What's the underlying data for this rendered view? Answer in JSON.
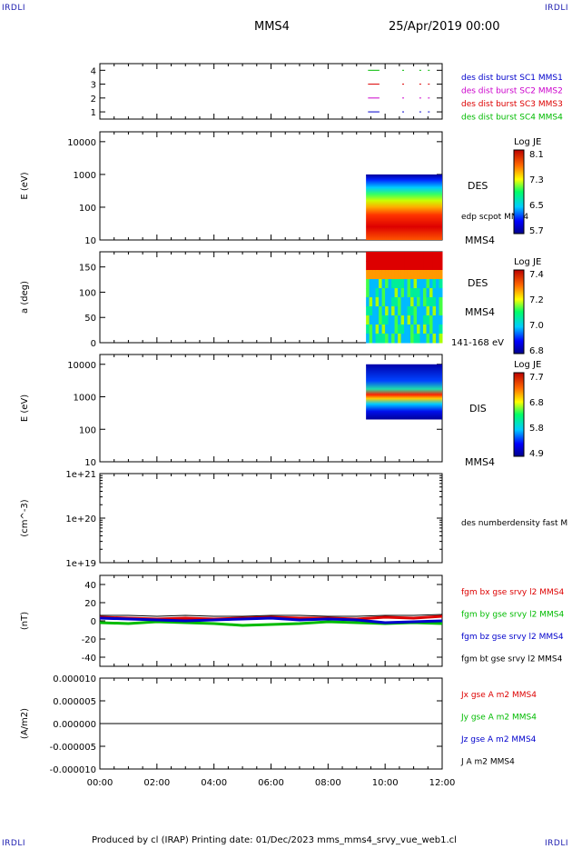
{
  "corners": {
    "tl": "IRDLI",
    "tr": "IRDLI",
    "bl": "IRDLI",
    "br": "IRDLI"
  },
  "header": {
    "title": "MMS4",
    "date": "25/Apr/2019 00:00"
  },
  "footer": {
    "text": "Produced by cl (IRAP)   Printing date: 01/Dec/2023   mms_mms4_srvy_vue_web1.cl"
  },
  "colors": {
    "sc1": "#0000cc",
    "sc2": "#cc00cc",
    "sc3": "#dd0000",
    "sc4": "#00bb00",
    "red": "#dd0000",
    "green": "#00bb00",
    "blue": "#0000cc",
    "black": "#000000"
  },
  "chart_data": [
    {
      "type": "line",
      "panel": "availability",
      "yticks": [
        "4",
        "3",
        "2",
        "1"
      ],
      "x": [
        "00:00",
        "02:00",
        "04:00",
        "06:00",
        "08:00",
        "10:00",
        "12:00"
      ],
      "series": [
        {
          "name": "des dist burst SC1 MMS1",
          "y": 1
        },
        {
          "name": "des dist burst SC2 MMS2",
          "y": 2
        },
        {
          "name": "des dist burst SC3 MMS3",
          "y": 3
        },
        {
          "name": "des dist burst SC4 MMS4",
          "y": 4
        }
      ]
    },
    {
      "type": "heatmap",
      "panel": "des-energy",
      "ylabel": "E (eV)",
      "yscale": "log",
      "yticks": [
        "10000",
        "1000",
        "100",
        "10"
      ],
      "label": "DES",
      "overlay": "edp scpot MMS4",
      "side": "MMS4",
      "colorbar": {
        "title": "Log JE",
        "ticks": [
          "8.1",
          "7.3",
          "6.5",
          "5.7"
        ]
      },
      "data_start": "09:20",
      "data_end": "12:00",
      "energy_range_eV": [
        10,
        1000
      ]
    },
    {
      "type": "heatmap",
      "panel": "des-pitch",
      "ylabel": "a (deg)",
      "yticks": [
        "150",
        "100",
        "50",
        "0"
      ],
      "label": "DES",
      "side": "MMS4",
      "energy": "141-168 eV",
      "colorbar": {
        "title": "Log JE",
        "ticks": [
          "7.4",
          "7.2",
          "7.0",
          "6.8"
        ]
      },
      "data_start": "09:20",
      "data_end": "12:00"
    },
    {
      "type": "heatmap",
      "panel": "dis-energy",
      "ylabel": "E (eV)",
      "yscale": "log",
      "yticks": [
        "10000",
        "1000",
        "100",
        "10"
      ],
      "label": "DIS",
      "side": "MMS4",
      "colorbar": {
        "title": "Log JE",
        "ticks": [
          "7.7",
          "6.8",
          "5.8",
          "4.9"
        ]
      },
      "data_start": "09:20",
      "data_end": "12:00",
      "energy_range_eV": [
        200,
        10000
      ],
      "peak_eV": 1000
    },
    {
      "type": "line",
      "panel": "density",
      "ylabel": "(cm^-3)",
      "yscale": "log",
      "yticks": [
        "1e+21",
        "1e+20",
        "1e+19"
      ],
      "series": [
        {
          "name": "des numberdensity fast M",
          "values": []
        }
      ]
    },
    {
      "type": "line",
      "panel": "fgm",
      "ylabel": "(nT)",
      "ylim": [
        -50,
        50
      ],
      "yticks": [
        "40",
        "20",
        "0",
        "-20",
        "-40"
      ],
      "x": [
        "00:00",
        "01:00",
        "02:00",
        "03:00",
        "04:00",
        "05:00",
        "06:00",
        "07:00",
        "08:00",
        "09:00",
        "10:00",
        "11:00",
        "12:00"
      ],
      "series": [
        {
          "name": "fgm bx gse srvy l2 MMS4",
          "values": [
            4,
            3,
            2,
            3,
            2,
            3,
            4,
            3,
            3,
            2,
            4,
            3,
            5
          ]
        },
        {
          "name": "fgm by gse srvy l2 MMS4",
          "values": [
            -2,
            -3,
            -1,
            -2,
            -3,
            -5,
            -4,
            -3,
            -1,
            -2,
            -3,
            -2,
            -3
          ]
        },
        {
          "name": "fgm bz gse srvy l2 MMS4",
          "values": [
            3,
            2,
            1,
            0,
            1,
            2,
            3,
            1,
            2,
            1,
            -2,
            -1,
            0
          ]
        },
        {
          "name": "fgm bt gse srvy l2 MMS4",
          "values": [
            6,
            6,
            5,
            6,
            5,
            5,
            6,
            6,
            5,
            5,
            6,
            6,
            7
          ]
        }
      ]
    },
    {
      "type": "line",
      "panel": "current",
      "ylabel": "(A/m2)",
      "ylim": [
        -1e-05,
        1e-05
      ],
      "yticks": [
        "0.000010",
        "0.000005",
        "0.000000",
        "-0.000005",
        "-0.000010"
      ],
      "xticks": [
        "00:00",
        "02:00",
        "04:00",
        "06:00",
        "08:00",
        "10:00",
        "12:00"
      ],
      "series": [
        {
          "name": "Jx gse A m2 MMS4",
          "values": [
            0,
            0,
            0,
            0,
            0,
            0,
            0
          ]
        },
        {
          "name": "Jy gse A m2 MMS4",
          "values": [
            0,
            0,
            0,
            0,
            0,
            0,
            0
          ]
        },
        {
          "name": "Jz gse A m2 MMS4",
          "values": [
            0,
            0,
            0,
            0,
            0,
            0,
            0
          ]
        },
        {
          "name": "J A m2 MMS4",
          "values": [
            0,
            0,
            0,
            0,
            0,
            0,
            0
          ]
        }
      ]
    }
  ]
}
